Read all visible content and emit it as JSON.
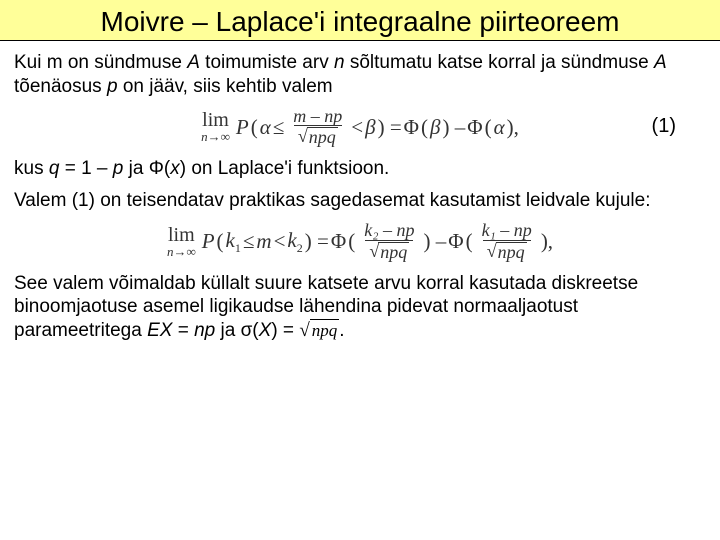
{
  "title": "Moivre – Laplace'i integraalne piirteoreem",
  "p1_a": "Kui m on sündmuse ",
  "p1_b": " toimumiste arv ",
  "p1_c": " sõltumatu katse korral ja sündmuse ",
  "p1_d": " tõenäosus ",
  "p1_e": " on jääv, siis kehtib valem",
  "A": "A",
  "n": "n",
  "p": "p",
  "eq1_num": "(1)",
  "lim": "lim",
  "limsub": "n→∞",
  "P": "P",
  "alpha": "α",
  "le": " ≤ ",
  "lt": " < ",
  "beta": "β",
  "fnum1": "m – np",
  "fden": "npq",
  "Phi": "Φ",
  "p2_a": "kus ",
  "p2_b": " = 1 – ",
  "p2_c": " ja Φ(",
  "p2_d": ") on Laplace'i funktsioon.",
  "q": "q",
  "x": "x",
  "p3": "Valem (1) on teisendatav praktikas sagedasemat kasutamist leidvale kujule:",
  "k1": "k",
  "s1": "1",
  "s2": "2",
  "m": "m",
  "f2num": "k₂ – np",
  "f2den": "npq",
  "f3num": "k₁ – np",
  "p4_a": "See valem võimaldab küllalt suure katsete arvu korral kasutada diskreetse binoomjaotuse asemel ligikaudse lähendina pidevat normaaljaotust parameetritega ",
  "p4_b": " = ",
  "p4_c": " ja σ(",
  "p4_d": ") = ",
  "EX": "EX",
  "np": "np",
  "X": "X",
  "npq": "npq",
  "dot": "."
}
